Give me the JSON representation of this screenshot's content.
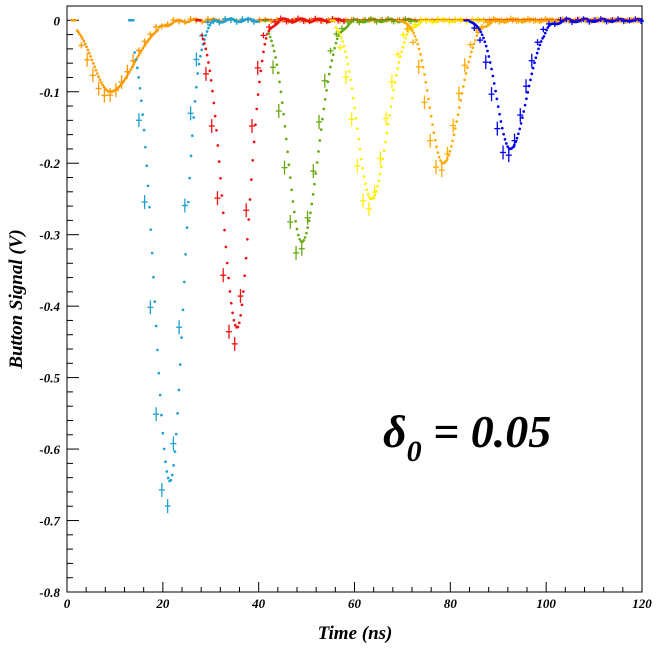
{
  "chart_data": {
    "type": "line",
    "title": "",
    "xlabel": "Time (ns)",
    "ylabel": "Button Signal (V)",
    "xlim": [
      0,
      120
    ],
    "ylim": [
      -0.8,
      0.02
    ],
    "x_ticks": [
      "0",
      "20",
      "40",
      "60",
      "80",
      "100",
      "120"
    ],
    "y_ticks": [
      "0",
      "-0.1",
      "-0.2",
      "-0.3",
      "-0.4",
      "-0.5",
      "-0.6",
      "-0.7",
      "-0.8"
    ],
    "grid": false,
    "legend": "none",
    "annotation": {
      "symbol": "δ",
      "subscript": "0",
      "text": " = 0.05"
    },
    "series": [
      {
        "color": "#ff9900",
        "start": 2,
        "t_peak": 9,
        "peak": -0.1,
        "rise": 3.5,
        "fall": 5.0,
        "tail_end": 122
      },
      {
        "color": "#1fa0d2",
        "start": 14,
        "t_peak": 21.5,
        "peak": -0.645,
        "rise": 3.2,
        "fall": 2.8,
        "tail_end": 40
      },
      {
        "color": "#ee1111",
        "start": 28,
        "t_peak": 35.5,
        "peak": -0.43,
        "rise": 3.0,
        "fall": 2.6,
        "tail_end": 58
      },
      {
        "color": "#66aa11",
        "start": 42,
        "t_peak": 49,
        "peak": -0.31,
        "rise": 2.9,
        "fall": 3.4,
        "tail_end": 73
      },
      {
        "color": "#ffee00",
        "start": 56,
        "t_peak": 63.5,
        "peak": -0.25,
        "rise": 2.9,
        "fall": 3.4,
        "tail_end": 87
      },
      {
        "color": "#ffaa00",
        "start": 70,
        "t_peak": 78.5,
        "peak": -0.2,
        "rise": 2.8,
        "fall": 3.4,
        "tail_end": 122
      },
      {
        "color": "#0000ee",
        "start": 84,
        "t_peak": 92.5,
        "peak": -0.18,
        "rise": 2.8,
        "fall": 3.4,
        "tail_end": 122
      }
    ]
  }
}
